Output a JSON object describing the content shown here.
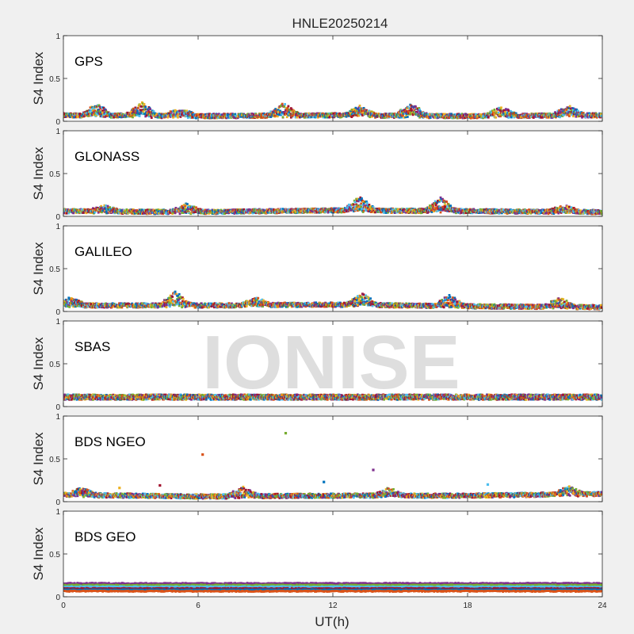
{
  "figure": {
    "title": "HNLE20250214",
    "watermark": "IONISE",
    "xlabel": "UT(h)",
    "x_ticks": [
      "0",
      "6",
      "12",
      "18",
      "24"
    ]
  },
  "colors": [
    "#0072bd",
    "#d95319",
    "#edb120",
    "#7e2f8e",
    "#77ac30",
    "#4dbeee",
    "#a2142f"
  ],
  "chart_data": [
    {
      "type": "scatter",
      "panel_label": "GPS",
      "ylabel": "S4 Index",
      "xlim": [
        0,
        24
      ],
      "ylim": [
        0,
        1
      ],
      "y_ticks": [
        "0",
        "0.5",
        "1"
      ],
      "baseline": [
        [
          0,
          0.07
        ],
        [
          6,
          0.06
        ],
        [
          12,
          0.07
        ],
        [
          18,
          0.06
        ],
        [
          24,
          0.07
        ]
      ],
      "peaks": [
        [
          1.5,
          0.19
        ],
        [
          3.5,
          0.2
        ],
        [
          5.2,
          0.14
        ],
        [
          9.8,
          0.19
        ],
        [
          13.2,
          0.16
        ],
        [
          15.5,
          0.19
        ],
        [
          19.5,
          0.15
        ],
        [
          22.5,
          0.16
        ]
      ],
      "outliers": []
    },
    {
      "type": "scatter",
      "panel_label": "GLONASS",
      "ylabel": "S4 Index",
      "xlim": [
        0,
        24
      ],
      "ylim": [
        0,
        1
      ],
      "y_ticks": [
        "0",
        "0.5",
        "1"
      ],
      "baseline": [
        [
          0,
          0.06
        ],
        [
          6,
          0.05
        ],
        [
          12,
          0.07
        ],
        [
          18,
          0.06
        ],
        [
          24,
          0.05
        ]
      ],
      "peaks": [
        [
          1.8,
          0.11
        ],
        [
          5.5,
          0.13
        ],
        [
          13.2,
          0.21
        ],
        [
          16.8,
          0.2
        ],
        [
          22.3,
          0.11
        ]
      ],
      "outliers": []
    },
    {
      "type": "scatter",
      "panel_label": "GALILEO",
      "ylabel": "S4 Index",
      "xlim": [
        0,
        24
      ],
      "ylim": [
        0,
        1
      ],
      "y_ticks": [
        "0",
        "0.5",
        "1"
      ],
      "baseline": [
        [
          0,
          0.07
        ],
        [
          6,
          0.07
        ],
        [
          12,
          0.08
        ],
        [
          18,
          0.06
        ],
        [
          24,
          0.05
        ]
      ],
      "peaks": [
        [
          0.3,
          0.14
        ],
        [
          5.0,
          0.21
        ],
        [
          8.6,
          0.14
        ],
        [
          13.3,
          0.19
        ],
        [
          17.2,
          0.17
        ],
        [
          22.1,
          0.14
        ]
      ],
      "outliers": []
    },
    {
      "type": "scatter",
      "panel_label": "SBAS",
      "ylabel": "S4 Index",
      "xlim": [
        0,
        24
      ],
      "ylim": [
        0,
        1
      ],
      "y_ticks": [
        "0",
        "0.5",
        "1"
      ],
      "baseline": [
        [
          0,
          0.11
        ],
        [
          6,
          0.11
        ],
        [
          12,
          0.11
        ],
        [
          18,
          0.11
        ],
        [
          24,
          0.11
        ]
      ],
      "peaks": [],
      "outliers": []
    },
    {
      "type": "scatter",
      "panel_label": "BDS NGEO",
      "ylabel": "S4 Index",
      "xlim": [
        0,
        24
      ],
      "ylim": [
        0,
        1
      ],
      "y_ticks": [
        "0",
        "0.5",
        "1"
      ],
      "baseline": [
        [
          0,
          0.08
        ],
        [
          6,
          0.06
        ],
        [
          12,
          0.07
        ],
        [
          18,
          0.07
        ],
        [
          24,
          0.09
        ]
      ],
      "peaks": [
        [
          0.8,
          0.14
        ],
        [
          8.0,
          0.15
        ],
        [
          14.5,
          0.14
        ],
        [
          22.5,
          0.16
        ]
      ],
      "outliers": [
        [
          6.2,
          0.55
        ],
        [
          9.9,
          0.8
        ],
        [
          11.6,
          0.23
        ],
        [
          13.8,
          0.37
        ],
        [
          4.3,
          0.19
        ],
        [
          2.5,
          0.16
        ],
        [
          18.9,
          0.2
        ]
      ]
    },
    {
      "type": "scatter",
      "panel_label": "BDS GEO",
      "ylabel": "S4 Index",
      "xlim": [
        0,
        24
      ],
      "ylim": [
        0,
        1
      ],
      "y_ticks": [
        "0",
        "0.5",
        "1"
      ],
      "baseline": [
        [
          0,
          0.1
        ],
        [
          24,
          0.1
        ]
      ],
      "bands": [
        0.155,
        0.135,
        0.115,
        0.095,
        0.08,
        0.065
      ],
      "peaks": [],
      "outliers": []
    }
  ]
}
